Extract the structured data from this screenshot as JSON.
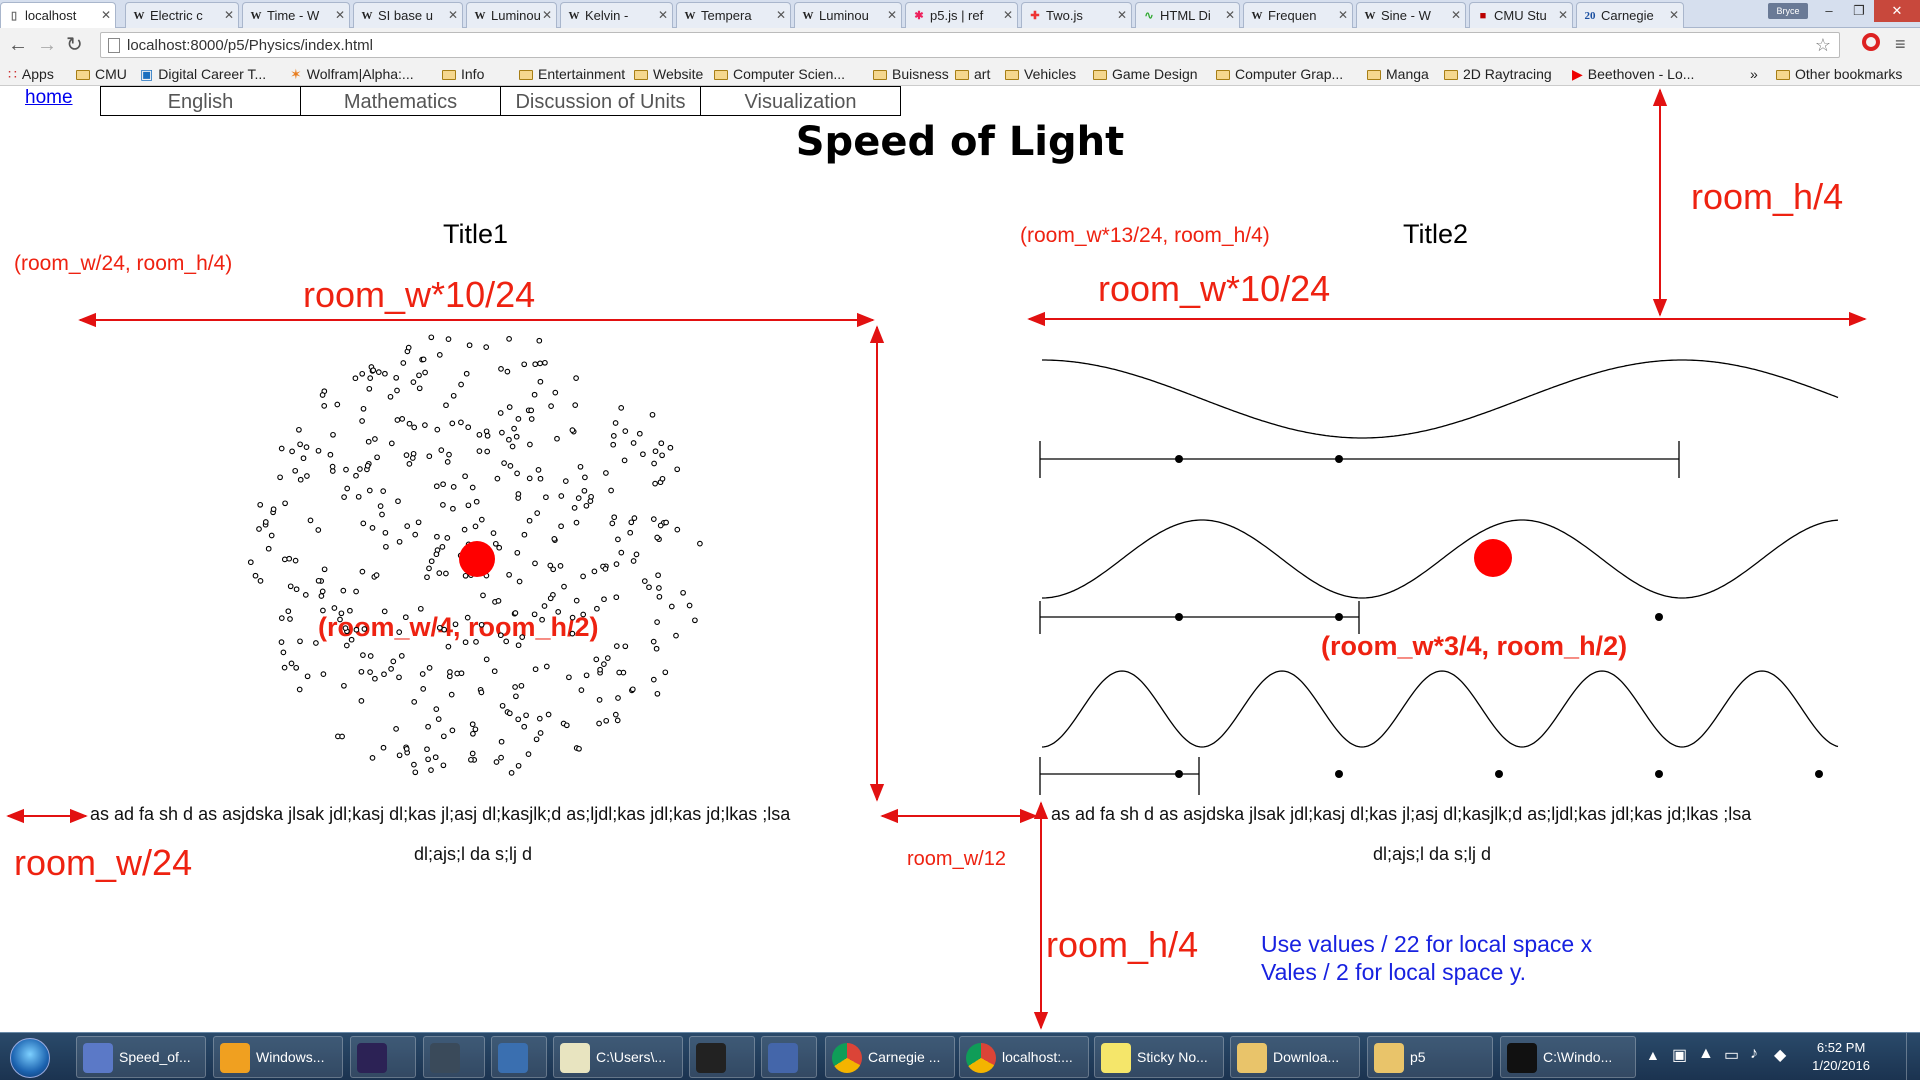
{
  "browser": {
    "tabs": [
      {
        "label": "localhost",
        "icon": "page-icon",
        "active": true
      },
      {
        "label": "Electric c",
        "icon": "wikipedia-icon"
      },
      {
        "label": "Time - W",
        "icon": "wikipedia-icon"
      },
      {
        "label": "SI base u",
        "icon": "wikipedia-icon"
      },
      {
        "label": "Luminou",
        "icon": "wikipedia-icon"
      },
      {
        "label": "Kelvin - ",
        "icon": "wikipedia-icon"
      },
      {
        "label": "Tempera",
        "icon": "wikipedia-icon"
      },
      {
        "label": "Luminou",
        "icon": "wikipedia-icon"
      },
      {
        "label": "p5.js | ref",
        "icon": "p5-icon"
      },
      {
        "label": "Two.js",
        "icon": "twojs-icon"
      },
      {
        "label": "HTML Di",
        "icon": "html-icon"
      },
      {
        "label": "Frequen",
        "icon": "wikipedia-icon"
      },
      {
        "label": "Sine - W",
        "icon": "wikipedia-icon"
      },
      {
        "label": "CMU Stu",
        "icon": "cmu-icon"
      },
      {
        "label": "Carnegie",
        "icon": "carnegie-icon"
      }
    ],
    "profile_name": "Bryce",
    "url": "localhost:8000/p5/Physics/index.html",
    "bookmarks": [
      {
        "label": "Apps",
        "icon": "apps-icon"
      },
      {
        "label": "CMU",
        "icon": "folder-icon"
      },
      {
        "label": "Digital Career T...",
        "icon": "trello-icon"
      },
      {
        "label": "Wolfram|Alpha:...",
        "icon": "wolfram-icon"
      },
      {
        "label": "Info",
        "icon": "folder-icon"
      },
      {
        "label": "Entertainment",
        "icon": "folder-icon"
      },
      {
        "label": "Website",
        "icon": "folder-icon"
      },
      {
        "label": "Computer Scien...",
        "icon": "folder-icon"
      },
      {
        "label": "Buisness",
        "icon": "folder-icon"
      },
      {
        "label": "art",
        "icon": "folder-icon"
      },
      {
        "label": "Vehicles",
        "icon": "folder-icon"
      },
      {
        "label": "Game Design",
        "icon": "folder-icon"
      },
      {
        "label": "Computer Grap...",
        "icon": "folder-icon"
      },
      {
        "label": "Manga",
        "icon": "folder-icon"
      },
      {
        "label": "2D Raytracing",
        "icon": "folder-icon"
      },
      {
        "label": "Beethoven - Lo...",
        "icon": "youtube-icon"
      }
    ],
    "bookmarks_overflow": "»",
    "other_bookmarks": "Other bookmarks"
  },
  "page": {
    "home_link": "home",
    "nav_tabs": [
      "English",
      "Mathematics",
      "Discussion of Units",
      "Visualization"
    ],
    "title": "Speed of Light",
    "title1": "Title1",
    "title2": "Title2",
    "body_line1": "as ad fa sh d as asjdska jlsak jdl;kasj dl;kas jl;asj dl;kasjlk;d as;ljdl;kas jdl;kas jd;lkas ;lsa",
    "body_line2": "dl;ajs;l da s;lj d"
  },
  "annotations": {
    "left_origin": "(room_w/24, room_h/4)",
    "right_origin": "(room_w*13/24, room_h/4)",
    "left_width": "room_w*10/24",
    "right_width": "room_w*10/24",
    "top_height": "room_h/4",
    "left_center": "(room_w/4, room_h/2)",
    "right_center": "(room_w*3/4, room_h/2)",
    "left_margin": "room_w/24",
    "gap": "room_w/12",
    "bottom_height": "room_h/4",
    "note_line1": "Use values / 22 for local space x",
    "note_line2": "Vales / 2 for local space y."
  },
  "taskbar": {
    "items": [
      {
        "label": "Speed_of...",
        "icon": "paint-icon"
      },
      {
        "label": "Windows...",
        "icon": "media-icon"
      },
      {
        "label": "",
        "icon": "eclipse-icon"
      },
      {
        "label": "",
        "icon": "sublime-icon"
      },
      {
        "label": "",
        "icon": "python-icon"
      },
      {
        "label": "C:\\Users\\...",
        "icon": "notepad-icon"
      },
      {
        "label": "",
        "icon": "github-icon"
      },
      {
        "label": "",
        "icon": "tex-icon"
      },
      {
        "label": "Carnegie ...",
        "icon": "chrome-icon"
      },
      {
        "label": "localhost:...",
        "icon": "chrome-icon"
      },
      {
        "label": "Sticky No...",
        "icon": "sticky-notes-icon"
      },
      {
        "label": "Downloa...",
        "icon": "folder-icon"
      },
      {
        "label": "p5",
        "icon": "folder-icon"
      },
      {
        "label": "C:\\Windo...",
        "icon": "cmd-icon"
      }
    ],
    "time": "6:52 PM",
    "date": "1/20/2016"
  },
  "colors": {
    "annotation": "#e21111",
    "note": "#1822e0",
    "link": "#0000ee",
    "particle": "#ff0000"
  }
}
